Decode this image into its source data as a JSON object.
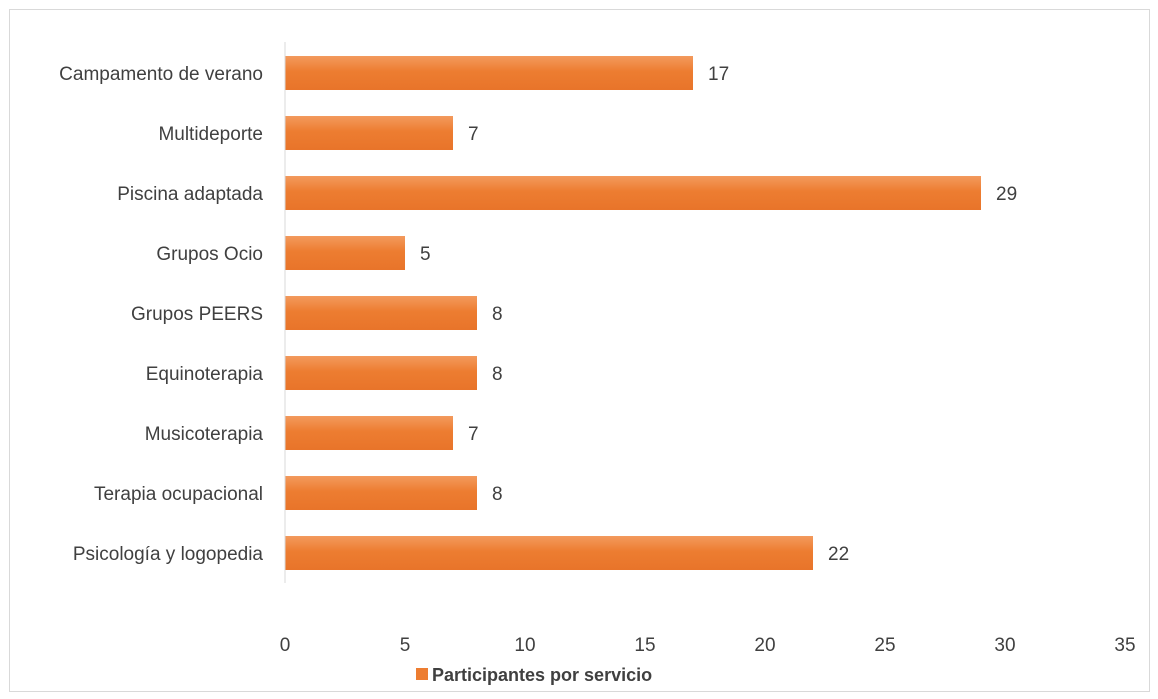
{
  "chart_data": {
    "type": "bar",
    "orientation": "horizontal",
    "title": "",
    "xlabel": "",
    "ylabel": "",
    "categories": [
      "Campamento de verano",
      "Multideporte",
      "Piscina adaptada",
      "Grupos Ocio",
      "Grupos PEERS",
      "Equinoterapia",
      "Musicoterapia",
      "Terapia ocupacional",
      "Psicología y logopedia"
    ],
    "series": [
      {
        "name": "Participantes por servicio",
        "values": [
          17,
          7,
          29,
          5,
          8,
          8,
          7,
          8,
          22
        ],
        "color": "#ed7d31"
      }
    ],
    "xlim": [
      0,
      35
    ],
    "x_ticks": [
      "0",
      "5",
      "10",
      "15",
      "20",
      "25",
      "30",
      "35"
    ],
    "data_labels": true,
    "grid": false,
    "legend": "bottom"
  }
}
